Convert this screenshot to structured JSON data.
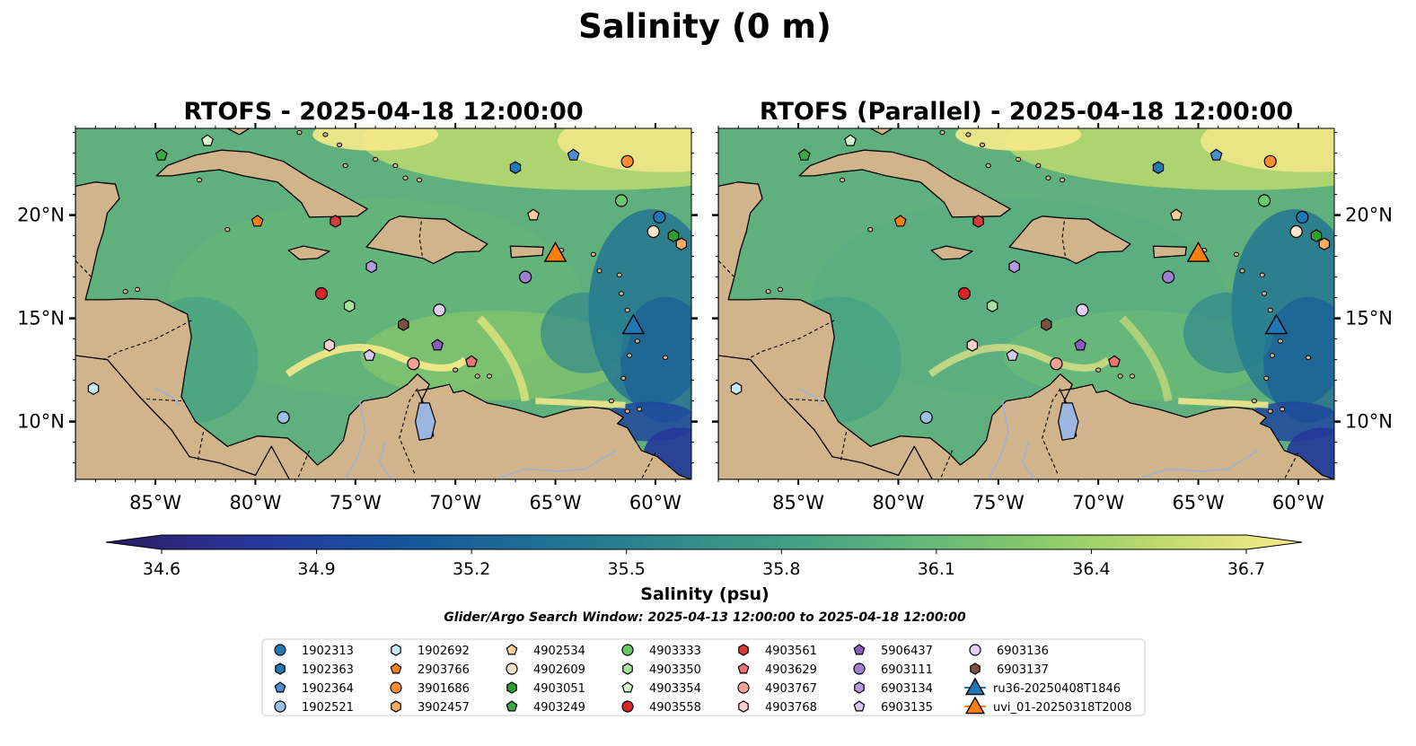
{
  "figure": {
    "suptitle": "Salinity (0 m)",
    "search_window": "Glider/Argo Search Window: 2025-04-13 12:00:00 to 2025-04-18 12:00:00"
  },
  "colors": {
    "land": "#d2b48c",
    "rivers": "#9db3d4",
    "colormap": [
      "#2a1a5e",
      "#2c2a80",
      "#26379a",
      "#1e469e",
      "#15569a",
      "#1a6596",
      "#207393",
      "#29808f",
      "#33908a",
      "#3f9d86",
      "#52ab7f",
      "#66b97a",
      "#7cc46e",
      "#98d06a",
      "#bcd96f",
      "#dde27c",
      "#f7ea8a"
    ],
    "ocean_base": "#5fb07d"
  },
  "chart_data": [
    {
      "type": "heatmap",
      "title": "RTOFS - 2025-04-18 12:00:00",
      "x_ticks": [
        "85°W",
        "80°W",
        "75°W",
        "70°W",
        "65°W",
        "60°W"
      ],
      "y_ticks": [
        "20°N",
        "15°N",
        "10°N"
      ],
      "xlim": [
        -89,
        -58.2
      ],
      "ylim": [
        7.2,
        24.2
      ],
      "y_label_side": "left"
    },
    {
      "type": "heatmap",
      "title": "RTOFS (Parallel) - 2025-04-18 12:00:00",
      "x_ticks": [
        "85°W",
        "80°W",
        "75°W",
        "70°W",
        "65°W",
        "60°W"
      ],
      "y_ticks": [
        "20°N",
        "15°N",
        "10°N"
      ],
      "xlim": [
        -89,
        -58.2
      ],
      "ylim": [
        7.2,
        24.2
      ],
      "y_label_side": "right"
    }
  ],
  "colorbar": {
    "label": "Salinity (psu)",
    "ticks": [
      "34.6",
      "34.9",
      "35.2",
      "35.5",
      "35.8",
      "36.1",
      "36.4",
      "36.7"
    ],
    "vmin": 34.6,
    "vmax": 36.7,
    "extend": "both"
  },
  "floats": [
    {
      "id": "1902313",
      "lon": -59.8,
      "lat": 19.9,
      "marker": "circle",
      "color": "#1f77b4"
    },
    {
      "id": "1902363",
      "lon": -67.0,
      "lat": 22.3,
      "marker": "hexagon",
      "color": "#1f77b4"
    },
    {
      "id": "1902364",
      "lon": -64.1,
      "lat": 22.9,
      "marker": "pentagon",
      "color": "#4c8fd0"
    },
    {
      "id": "1902521",
      "lon": -78.6,
      "lat": 10.2,
      "marker": "circle",
      "color": "#9bc2e6"
    },
    {
      "id": "1902692",
      "lon": -88.1,
      "lat": 11.6,
      "marker": "hexagon",
      "color": "#c6e8f2"
    },
    {
      "id": "2903766",
      "lon": -79.9,
      "lat": 19.7,
      "marker": "pentagon",
      "color": "#ff7f0e"
    },
    {
      "id": "3901686",
      "lon": -61.4,
      "lat": 22.6,
      "marker": "circle",
      "color": "#ff8c2e"
    },
    {
      "id": "3902457",
      "lon": -58.7,
      "lat": 18.6,
      "marker": "hexagon",
      "color": "#ffab66"
    },
    {
      "id": "4902534",
      "lon": -66.1,
      "lat": 20.0,
      "marker": "pentagon",
      "color": "#ffcc99"
    },
    {
      "id": "4902609",
      "lon": -60.1,
      "lat": 19.2,
      "marker": "circle",
      "color": "#ffe3c8"
    },
    {
      "id": "4903051",
      "lon": -59.1,
      "lat": 19.0,
      "marker": "hexagon",
      "color": "#2ca02c"
    },
    {
      "id": "4903249",
      "lon": -84.7,
      "lat": 22.9,
      "marker": "pentagon",
      "color": "#3ca84a"
    },
    {
      "id": "4903333",
      "lon": -61.7,
      "lat": 20.7,
      "marker": "circle",
      "color": "#6cc66c"
    },
    {
      "id": "4903350",
      "lon": -75.3,
      "lat": 15.6,
      "marker": "hexagon",
      "color": "#a8e0a0"
    },
    {
      "id": "4903354",
      "lon": -82.4,
      "lat": 23.6,
      "marker": "pentagon",
      "color": "#d8f5d0"
    },
    {
      "id": "4903558",
      "lon": -76.7,
      "lat": 16.2,
      "marker": "circle",
      "color": "#d62728"
    },
    {
      "id": "4903561",
      "lon": -76.0,
      "lat": 19.7,
      "marker": "hexagon",
      "color": "#d63a3a"
    },
    {
      "id": "4903629",
      "lon": -69.2,
      "lat": 12.9,
      "marker": "pentagon",
      "color": "#e8736f"
    },
    {
      "id": "4903767",
      "lon": -72.1,
      "lat": 12.8,
      "marker": "circle",
      "color": "#f2a19a"
    },
    {
      "id": "4903768",
      "lon": -76.3,
      "lat": 13.7,
      "marker": "hexagon",
      "color": "#fbd0cc"
    },
    {
      "id": "5906437",
      "lon": -70.9,
      "lat": 13.7,
      "marker": "pentagon",
      "color": "#8a5cc0"
    },
    {
      "id": "6903111",
      "lon": -66.5,
      "lat": 17.0,
      "marker": "circle",
      "color": "#a17fd0"
    },
    {
      "id": "6903134",
      "lon": -74.2,
      "lat": 17.5,
      "marker": "hexagon",
      "color": "#b898e0"
    },
    {
      "id": "6903135",
      "lon": -74.3,
      "lat": 13.2,
      "marker": "pentagon",
      "color": "#d8c6f0"
    },
    {
      "id": "6903136",
      "lon": -70.8,
      "lat": 15.4,
      "marker": "circle",
      "color": "#e6ccf7"
    },
    {
      "id": "6903137",
      "lon": -72.6,
      "lat": 14.7,
      "marker": "hexagon",
      "color": "#7a5040"
    }
  ],
  "gliders": [
    {
      "id": "ru36-20250408T1846",
      "lon": -61.1,
      "lat": 14.6,
      "color": "#1f77b4"
    },
    {
      "id": "uvi_01-20250318T2008",
      "lon": -65.0,
      "lat": 18.1,
      "color": "#ff7f0e"
    }
  ]
}
